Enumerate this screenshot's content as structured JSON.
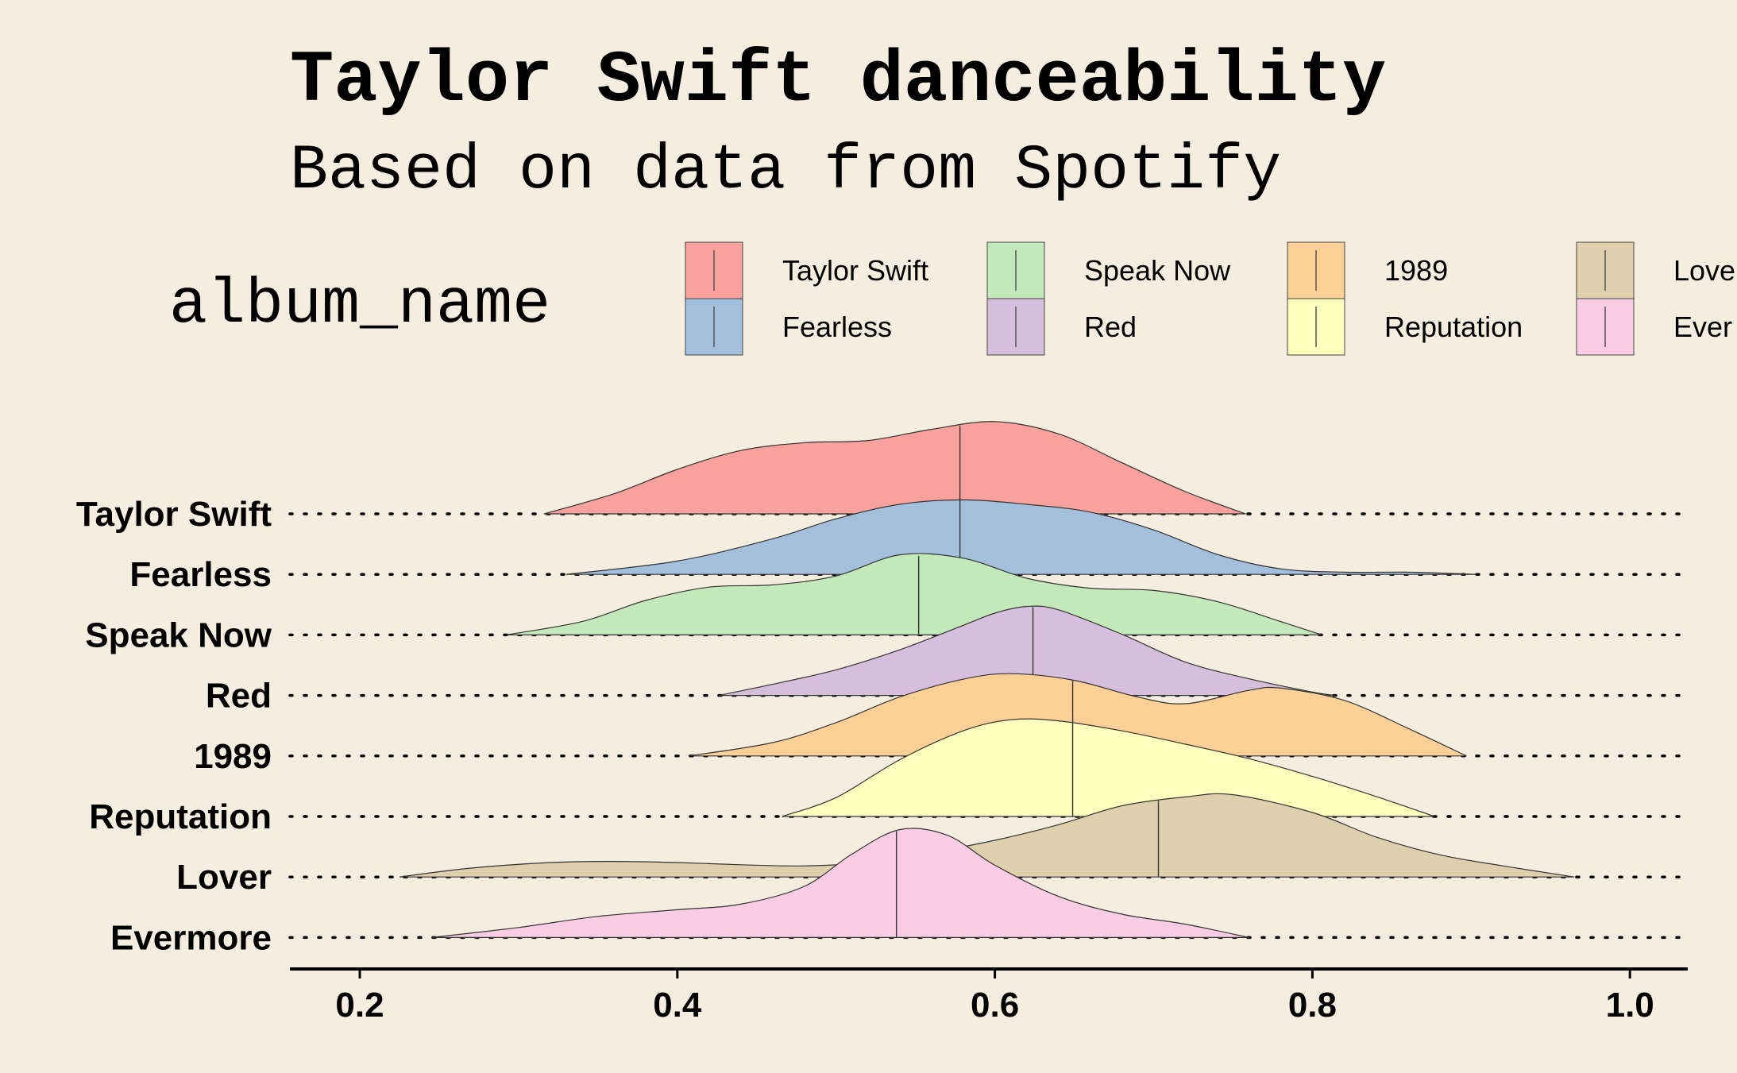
{
  "chart_data": {
    "type": "ridgeline",
    "title": "Taylor Swift danceability",
    "subtitle": "Based on data from Spotify",
    "legend_title": "album_name",
    "legend_placement": "top",
    "xlim": [
      0.15,
      1.03
    ],
    "x_ticks": [
      "0.2",
      "0.4",
      "0.6",
      "0.8",
      "1.0"
    ],
    "grid": "dotted horizontal baselines",
    "categories": [
      "Taylor Swift",
      "Fearless",
      "Speak Now",
      "Red",
      "1989",
      "Reputation",
      "Lover",
      "Evermore"
    ],
    "legend": [
      {
        "label": "Taylor Swift",
        "color": "#f8a19d"
      },
      {
        "label": "Fearless",
        "color": "#a3bfdc"
      },
      {
        "label": "Speak Now",
        "color": "#c3e8b9"
      },
      {
        "label": "Red",
        "color": "#d6bfdc"
      },
      {
        "label": "1989",
        "color": "#fdd097"
      },
      {
        "label": "Reputation",
        "color": "#fefebd"
      },
      {
        "label": "Love",
        "color": "#decfad"
      },
      {
        "label": "Ever",
        "color": "#fbcde5"
      }
    ],
    "series": [
      {
        "name": "Taylor Swift",
        "color": "#f8a19d",
        "median": 0.578,
        "range": [
          0.316,
          0.758
        ],
        "density": [
          [
            0.316,
            0.0
          ],
          [
            0.36,
            0.18
          ],
          [
            0.4,
            0.4
          ],
          [
            0.44,
            0.57
          ],
          [
            0.48,
            0.64
          ],
          [
            0.52,
            0.66
          ],
          [
            0.56,
            0.76
          ],
          [
            0.6,
            0.83
          ],
          [
            0.64,
            0.72
          ],
          [
            0.68,
            0.46
          ],
          [
            0.72,
            0.2
          ],
          [
            0.758,
            0.0
          ]
        ]
      },
      {
        "name": "Fearless",
        "color": "#a3bfdc",
        "median": 0.578,
        "range": [
          0.33,
          0.903
        ],
        "density": [
          [
            0.33,
            0.0
          ],
          [
            0.4,
            0.12
          ],
          [
            0.46,
            0.32
          ],
          [
            0.5,
            0.5
          ],
          [
            0.54,
            0.63
          ],
          [
            0.58,
            0.67
          ],
          [
            0.62,
            0.63
          ],
          [
            0.66,
            0.56
          ],
          [
            0.7,
            0.4
          ],
          [
            0.74,
            0.18
          ],
          [
            0.78,
            0.05
          ],
          [
            0.82,
            0.02
          ],
          [
            0.86,
            0.02
          ],
          [
            0.903,
            0.0
          ]
        ]
      },
      {
        "name": "Speak Now",
        "color": "#c3e8b9",
        "median": 0.552,
        "range": [
          0.292,
          0.806
        ],
        "density": [
          [
            0.292,
            0.0
          ],
          [
            0.34,
            0.12
          ],
          [
            0.38,
            0.31
          ],
          [
            0.42,
            0.43
          ],
          [
            0.46,
            0.45
          ],
          [
            0.5,
            0.53
          ],
          [
            0.54,
            0.72
          ],
          [
            0.58,
            0.69
          ],
          [
            0.62,
            0.51
          ],
          [
            0.66,
            0.42
          ],
          [
            0.7,
            0.4
          ],
          [
            0.74,
            0.3
          ],
          [
            0.78,
            0.12
          ],
          [
            0.806,
            0.0
          ]
        ]
      },
      {
        "name": "Red",
        "color": "#d6bfdc",
        "median": 0.624,
        "range": [
          0.426,
          0.814
        ],
        "density": [
          [
            0.426,
            0.0
          ],
          [
            0.46,
            0.1
          ],
          [
            0.5,
            0.23
          ],
          [
            0.54,
            0.41
          ],
          [
            0.58,
            0.63
          ],
          [
            0.6,
            0.74
          ],
          [
            0.62,
            0.8
          ],
          [
            0.64,
            0.77
          ],
          [
            0.68,
            0.55
          ],
          [
            0.72,
            0.3
          ],
          [
            0.76,
            0.15
          ],
          [
            0.8,
            0.03
          ],
          [
            0.814,
            0.0
          ]
        ]
      },
      {
        "name": "1989",
        "color": "#fdd097",
        "median": 0.649,
        "range": [
          0.407,
          0.897
        ],
        "density": [
          [
            0.407,
            0.0
          ],
          [
            0.46,
            0.12
          ],
          [
            0.5,
            0.3
          ],
          [
            0.54,
            0.53
          ],
          [
            0.58,
            0.69
          ],
          [
            0.61,
            0.74
          ],
          [
            0.65,
            0.68
          ],
          [
            0.69,
            0.53
          ],
          [
            0.72,
            0.47
          ],
          [
            0.76,
            0.59
          ],
          [
            0.78,
            0.61
          ],
          [
            0.82,
            0.5
          ],
          [
            0.86,
            0.25
          ],
          [
            0.897,
            0.0
          ]
        ]
      },
      {
        "name": "Reputation",
        "color": "#fefebd",
        "median": 0.649,
        "range": [
          0.466,
          0.877
        ],
        "density": [
          [
            0.466,
            0.0
          ],
          [
            0.5,
            0.17
          ],
          [
            0.54,
            0.51
          ],
          [
            0.58,
            0.77
          ],
          [
            0.61,
            0.87
          ],
          [
            0.64,
            0.86
          ],
          [
            0.68,
            0.77
          ],
          [
            0.72,
            0.65
          ],
          [
            0.76,
            0.52
          ],
          [
            0.8,
            0.36
          ],
          [
            0.84,
            0.18
          ],
          [
            0.877,
            0.0
          ]
        ]
      },
      {
        "name": "Lover",
        "color": "#decfad",
        "median": 0.703,
        "range": [
          0.225,
          0.965
        ],
        "density": [
          [
            0.225,
            0.0
          ],
          [
            0.27,
            0.08
          ],
          [
            0.32,
            0.13
          ],
          [
            0.36,
            0.14
          ],
          [
            0.4,
            0.13
          ],
          [
            0.44,
            0.11
          ],
          [
            0.48,
            0.1
          ],
          [
            0.52,
            0.13
          ],
          [
            0.56,
            0.22
          ],
          [
            0.6,
            0.33
          ],
          [
            0.64,
            0.47
          ],
          [
            0.68,
            0.64
          ],
          [
            0.72,
            0.72
          ],
          [
            0.75,
            0.74
          ],
          [
            0.8,
            0.58
          ],
          [
            0.84,
            0.36
          ],
          [
            0.88,
            0.2
          ],
          [
            0.92,
            0.1
          ],
          [
            0.965,
            0.0
          ]
        ]
      },
      {
        "name": "Evermore",
        "color": "#fbcde5",
        "median": 0.538,
        "range": [
          0.245,
          0.76
        ],
        "density": [
          [
            0.245,
            0.0
          ],
          [
            0.3,
            0.09
          ],
          [
            0.35,
            0.19
          ],
          [
            0.4,
            0.25
          ],
          [
            0.44,
            0.3
          ],
          [
            0.48,
            0.46
          ],
          [
            0.51,
            0.75
          ],
          [
            0.54,
            0.97
          ],
          [
            0.57,
            0.92
          ],
          [
            0.6,
            0.65
          ],
          [
            0.64,
            0.37
          ],
          [
            0.68,
            0.21
          ],
          [
            0.72,
            0.12
          ],
          [
            0.76,
            0.0
          ]
        ]
      }
    ]
  }
}
